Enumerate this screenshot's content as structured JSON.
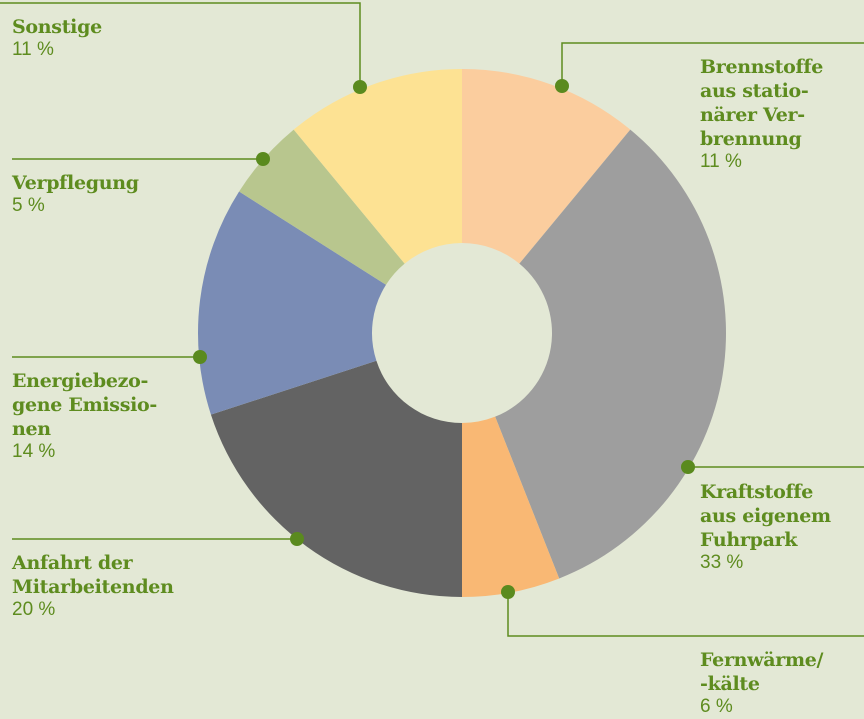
{
  "chart_data": {
    "type": "donut",
    "categories": [
      "Brennstoffe\naus statio-\nnärer Ver-\nbrennung",
      "Kraftstoffe\naus eigenem\nFuhrpark",
      "Fernwärme/\n-kälte",
      "Anfahrt der\nMitarbeitenden",
      "Energiebezo-\ngene Emissio-\nnen",
      "Verpflegung",
      "Sonstige"
    ],
    "values": [
      11,
      33,
      6,
      20,
      14,
      5,
      11
    ],
    "value_labels": [
      "11 %",
      "33 %",
      "6 %",
      "20 %",
      "14 %",
      "5 %",
      "11 %"
    ],
    "colors": [
      "#fbcd9e",
      "#9e9e9e",
      "#f9b874",
      "#636363",
      "#7a8cb5",
      "#b8c68e",
      "#fde293"
    ]
  }
}
